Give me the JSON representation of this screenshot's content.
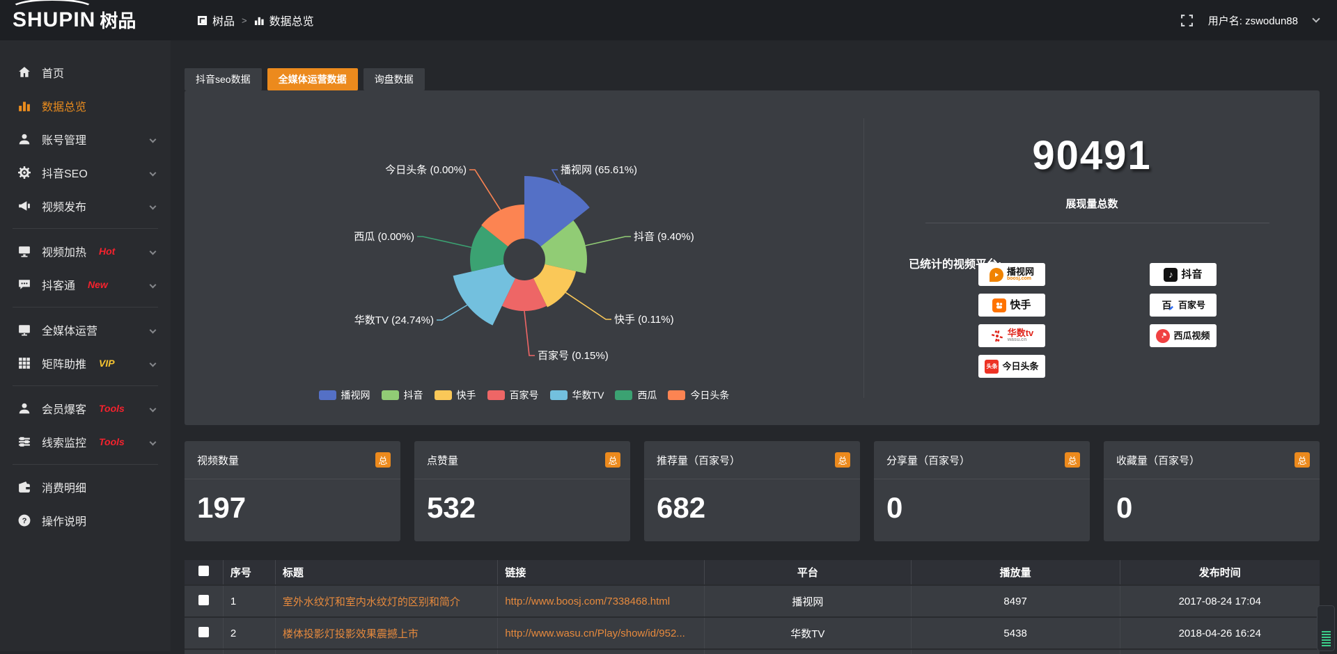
{
  "topbar": {
    "logo_primary": "SHUPIN",
    "logo_secondary": "树品",
    "breadcrumb_home": "树品",
    "breadcrumb_sep": ">",
    "breadcrumb_current": "数据总览",
    "username": "用户名: zswodun88"
  },
  "sidebar": {
    "items": [
      {
        "icon": "home-icon",
        "label": "首页",
        "active": false,
        "chevron": false,
        "badge": ""
      },
      {
        "icon": "bar-chart-icon",
        "label": "数据总览",
        "active": true,
        "chevron": false,
        "badge": ""
      },
      {
        "icon": "user-icon",
        "label": "账号管理",
        "active": false,
        "chevron": true,
        "badge": ""
      },
      {
        "icon": "gear-icon",
        "label": "抖音SEO",
        "active": false,
        "chevron": true,
        "badge": ""
      },
      {
        "icon": "megaphone-icon",
        "label": "视频发布",
        "active": false,
        "chevron": true,
        "badge": "",
        "divider_after": true
      },
      {
        "icon": "monitor-play-icon",
        "label": "视频加热",
        "active": false,
        "chevron": true,
        "badge": "Hot",
        "badge_color": "#f5222d"
      },
      {
        "icon": "chat-icon",
        "label": "抖客通",
        "active": false,
        "chevron": true,
        "badge": "New",
        "badge_color": "#f5222d",
        "divider_after": true
      },
      {
        "icon": "display-icon",
        "label": "全媒体运营",
        "active": false,
        "chevron": true,
        "badge": ""
      },
      {
        "icon": "grid-icon",
        "label": "矩阵助推",
        "active": false,
        "chevron": true,
        "badge": "VIP",
        "badge_color": "#f6c431",
        "divider_after": true
      },
      {
        "icon": "member-icon",
        "label": "会员爆客",
        "active": false,
        "chevron": true,
        "badge": "Tools",
        "badge_color": "#f5222d"
      },
      {
        "icon": "sliders-icon",
        "label": "线索监控",
        "active": false,
        "chevron": true,
        "badge": "Tools",
        "badge_color": "#f5222d",
        "divider_after": true
      },
      {
        "icon": "wallet-icon",
        "label": "消费明细",
        "active": false,
        "chevron": false,
        "badge": ""
      },
      {
        "icon": "question-icon",
        "label": "操作说明",
        "active": false,
        "chevron": false,
        "badge": ""
      }
    ]
  },
  "tabs": [
    {
      "label": "抖音seo数据",
      "active": false
    },
    {
      "label": "全媒体运营数据",
      "active": true
    },
    {
      "label": "询盘数据",
      "active": false
    }
  ],
  "chart_data": {
    "type": "pie",
    "subtype": "nightingale-rose",
    "inner_radius": 30,
    "legend_position": "bottom",
    "label_format": "{name} ({pct}%)",
    "series": [
      {
        "name": "播视网",
        "value": 65.61,
        "pct_label": "65.61",
        "color": "#5470c6",
        "display_radius": 120
      },
      {
        "name": "抖音",
        "value": 9.4,
        "pct_label": "9.40",
        "color": "#91cc75",
        "display_radius": 90
      },
      {
        "name": "快手",
        "value": 0.11,
        "pct_label": "0.11",
        "color": "#fac858",
        "display_radius": 76
      },
      {
        "name": "百家号",
        "value": 0.15,
        "pct_label": "0.15",
        "color": "#ee6666",
        "display_radius": 74
      },
      {
        "name": "华数TV",
        "value": 24.74,
        "pct_label": "24.74",
        "color": "#73c0de",
        "display_radius": 105
      },
      {
        "name": "西瓜",
        "value": 0.0,
        "pct_label": "0.00",
        "color": "#3ba272",
        "display_radius": 78
      },
      {
        "name": "今日头条",
        "value": 0.0,
        "pct_label": "0.00",
        "color": "#fc8452",
        "display_radius": 79
      }
    ]
  },
  "overview": {
    "total_value": "90491",
    "total_caption": "展现量总数",
    "platforms_label": "已统计的视频平台:",
    "platforms_left": [
      {
        "icon": "boosj-icon",
        "name": "播视网",
        "sub": "boosj.com"
      },
      {
        "icon": "kuaishou-icon",
        "name": "快手",
        "sub": ""
      },
      {
        "icon": "wasu-icon",
        "name": "华数tv",
        "sub": "wasu.cn"
      },
      {
        "icon": "toutiao-icon",
        "name": "今日头条",
        "sub": ""
      }
    ],
    "platforms_right": [
      {
        "icon": "douyin-icon",
        "name": "抖音",
        "sub": ""
      },
      {
        "icon": "baijiahao-icon",
        "name": "百家号",
        "sub": ""
      },
      {
        "icon": "xigua-icon",
        "name": "西瓜视频",
        "sub": ""
      }
    ]
  },
  "stats": [
    {
      "label": "视频数量",
      "badge": "总",
      "value": "197"
    },
    {
      "label": "点赞量",
      "badge": "总",
      "value": "532"
    },
    {
      "label": "推荐量（百家号）",
      "badge": "总",
      "value": "682"
    },
    {
      "label": "分享量（百家号）",
      "badge": "总",
      "value": "0"
    },
    {
      "label": "收藏量（百家号）",
      "badge": "总",
      "value": "0"
    }
  ],
  "table": {
    "headers": {
      "seq": "序号",
      "title": "标题",
      "link": "链接",
      "platform": "平台",
      "plays": "播放量",
      "time": "发布时间"
    },
    "rows": [
      {
        "seq": "1",
        "title": "室外水纹灯和室内水纹灯的区别和简介",
        "link": "http://www.boosj.com/7338468.html",
        "platform": "播视网",
        "plays": "8497",
        "time": "2017-08-24 17:04"
      },
      {
        "seq": "2",
        "title": "楼体投影灯投影效果震撼上市",
        "link": "http://www.wasu.cn/Play/show/id/952...",
        "platform": "华数TV",
        "plays": "5438",
        "time": "2018-04-26 16:24"
      }
    ]
  }
}
